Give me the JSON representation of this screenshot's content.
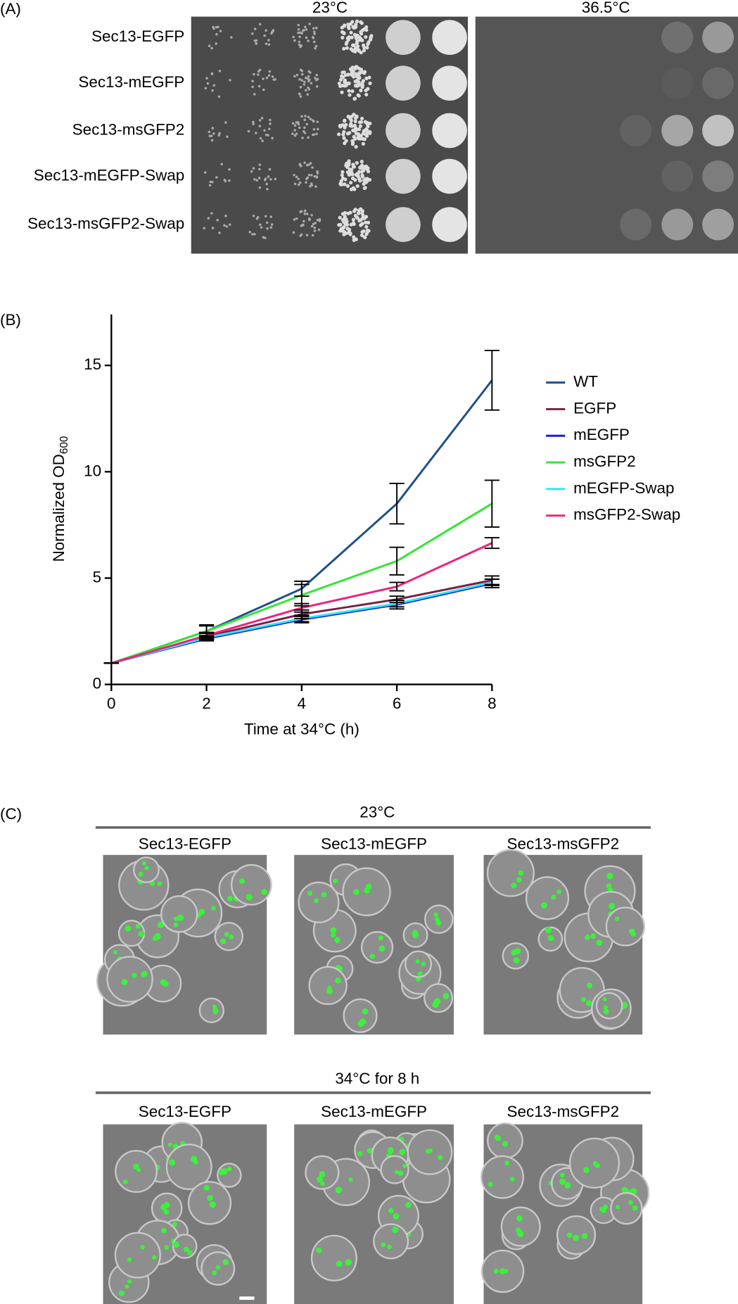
{
  "panel_a": {
    "label": "(A)",
    "temperatures": [
      "23°C",
      "36.5°C"
    ],
    "strains": [
      "Sec13-EGFP",
      "Sec13-mEGFP",
      "Sec13-msGFP2",
      "Sec13-mEGFP-Swap",
      "Sec13-msGFP2-Swap"
    ]
  },
  "chart_data": {
    "type": "line",
    "panel_label": "(B)",
    "x_label": "Time at 34°C (h)",
    "y_label": "Normalized OD",
    "y_label_subscript": "600",
    "x": [
      0,
      2,
      4,
      6,
      8
    ],
    "xlim": [
      0,
      8
    ],
    "xticks": [
      0,
      2,
      4,
      6,
      8
    ],
    "ylim": [
      0,
      17.4
    ],
    "yticks": [
      0,
      5,
      10,
      15
    ],
    "series": [
      {
        "name": "WT",
        "color": "#1f4e8c",
        "values": [
          1,
          2.5,
          4.5,
          8.5,
          14.3
        ],
        "errors": [
          0,
          0.3,
          0.35,
          0.95,
          1.4
        ]
      },
      {
        "name": "EGFP",
        "color": "#7a1f45",
        "values": [
          1,
          2.25,
          3.3,
          4.0,
          4.9
        ],
        "errors": [
          0,
          0.15,
          0.2,
          0.15,
          0.2
        ]
      },
      {
        "name": "mEGFP",
        "color": "#1a1adb",
        "values": [
          1,
          2.15,
          3.05,
          3.75,
          4.75
        ],
        "errors": [
          0,
          0.1,
          0.15,
          0.2,
          0.2
        ]
      },
      {
        "name": "msGFP2",
        "color": "#33e633",
        "values": [
          1,
          2.5,
          4.2,
          5.8,
          8.5
        ],
        "errors": [
          0,
          0.25,
          0.5,
          0.65,
          1.1
        ]
      },
      {
        "name": "mEGFP-Swap",
        "color": "#33e6f0",
        "values": [
          1,
          2.2,
          3.1,
          3.8,
          4.8
        ],
        "errors": [
          0,
          0.1,
          0.15,
          0.15,
          0.15
        ]
      },
      {
        "name": "msGFP2-Swap",
        "color": "#f0207a",
        "values": [
          1,
          2.3,
          3.6,
          4.6,
          6.65
        ],
        "errors": [
          0,
          0.15,
          0.2,
          0.2,
          0.25
        ]
      }
    ]
  },
  "panel_c": {
    "label": "(C)",
    "rows": [
      {
        "title": "23°C",
        "images": [
          "Sec13-EGFP",
          "Sec13-mEGFP",
          "Sec13-msGFP2"
        ]
      },
      {
        "title": "34°C for 8 h",
        "images": [
          "Sec13-EGFP",
          "Sec13-mEGFP",
          "Sec13-msGFP2"
        ]
      }
    ]
  }
}
